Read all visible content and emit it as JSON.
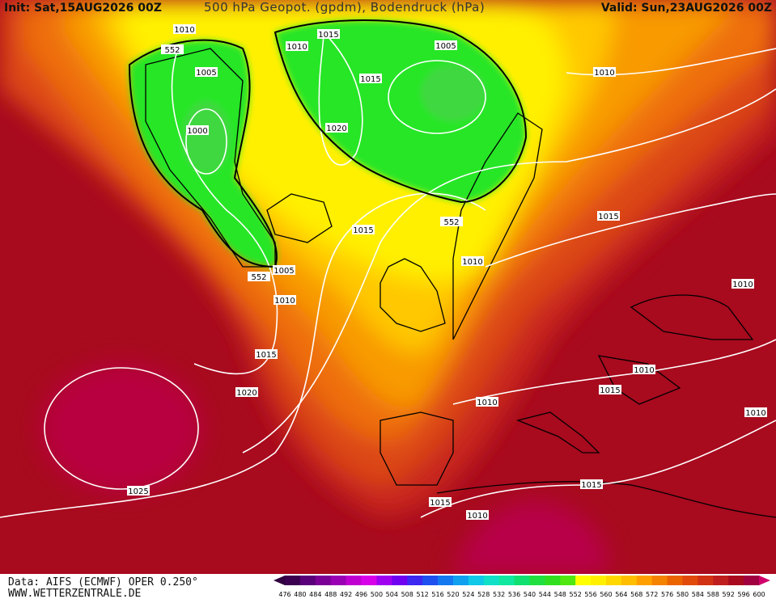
{
  "header": {
    "init": "Init: Sat,15AUG2026 00Z",
    "title": "500 hPa Geopot. (gpdm), Bodendruck (hPa)",
    "valid": "Valid: Sun,23AUG2026 00Z"
  },
  "isobar_labels": [
    1010,
    1015,
    552,
    1010,
    1005,
    1005,
    1015,
    1010,
    1000,
    1020,
    1015,
    1015,
    552,
    1010,
    1005,
    552,
    1010,
    1010,
    1015,
    1010,
    1015,
    1020,
    1010,
    1010,
    1025,
    1015,
    1015,
    1010
  ],
  "colorbar": {
    "labels": [
      476,
      480,
      484,
      488,
      492,
      496,
      500,
      504,
      508,
      512,
      516,
      520,
      524,
      528,
      532,
      536,
      540,
      544,
      548,
      552,
      556,
      560,
      564,
      568,
      572,
      576,
      580,
      584,
      588,
      592,
      596,
      600
    ],
    "colors": [
      "#3c0050",
      "#5a0078",
      "#7a0096",
      "#9a00b4",
      "#c000d0",
      "#d800e8",
      "#a000f0",
      "#7000f0",
      "#3c28f0",
      "#1e50f0",
      "#1478f0",
      "#10a0f0",
      "#10c8e8",
      "#10e0c8",
      "#10e8a0",
      "#10e070",
      "#20e040",
      "#30e020",
      "#50e810",
      "#ffff00",
      "#fff000",
      "#ffd800",
      "#ffbe00",
      "#ffa000",
      "#f58200",
      "#eb6400",
      "#e14a0a",
      "#d23214",
      "#c01e1e",
      "#aa0a1e",
      "#a00040"
    ]
  },
  "footer": {
    "source": "Data: AIFS (ECMWF) OPER 0.250°",
    "site": "WWW.WETTERZENTRALE.DE"
  }
}
